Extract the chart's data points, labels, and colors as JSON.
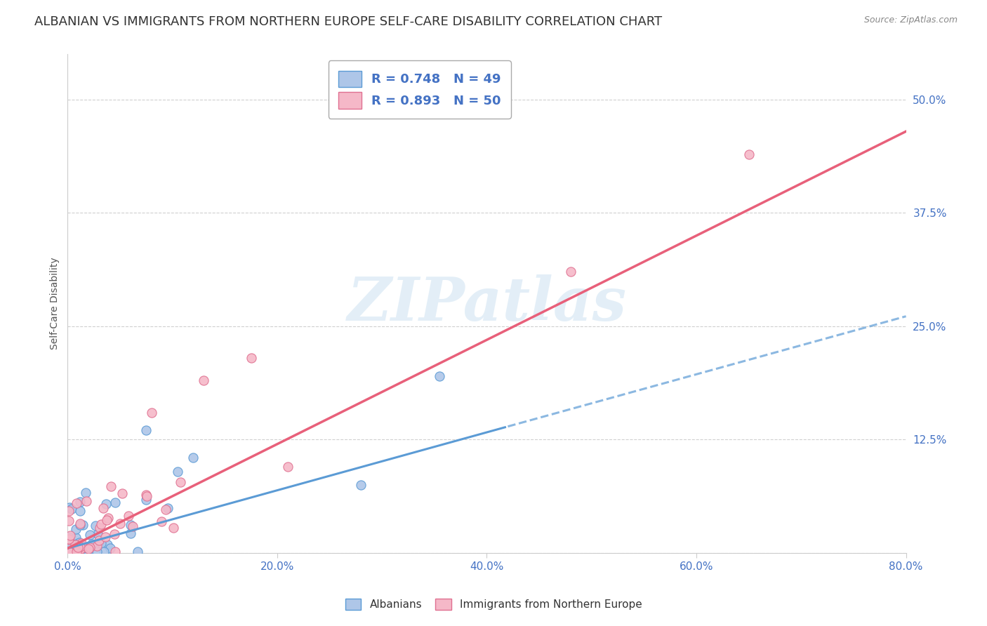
{
  "title": "ALBANIAN VS IMMIGRANTS FROM NORTHERN EUROPE SELF-CARE DISABILITY CORRELATION CHART",
  "source": "Source: ZipAtlas.com",
  "ylabel": "Self-Care Disability",
  "xlim": [
    0.0,
    0.8
  ],
  "ylim": [
    0.0,
    0.55
  ],
  "xtick_vals": [
    0.0,
    0.2,
    0.4,
    0.6,
    0.8
  ],
  "xtick_labels": [
    "0.0%",
    "20.0%",
    "40.0%",
    "60.0%",
    "80.0%"
  ],
  "ytick_vals": [
    0.0,
    0.125,
    0.25,
    0.375,
    0.5
  ],
  "ytick_labels": [
    "",
    "12.5%",
    "25.0%",
    "37.5%",
    "50.0%"
  ],
  "albanians_R": 0.748,
  "albanians_N": 49,
  "northern_europe_R": 0.893,
  "northern_europe_N": 50,
  "color_albanians_fill": "#aec6e8",
  "color_albanians_edge": "#5b9bd5",
  "color_northern_fill": "#f5b8c8",
  "color_northern_edge": "#e07090",
  "color_line_albanians": "#5b9bd5",
  "color_line_northern": "#e8607a",
  "background_color": "#ffffff",
  "grid_color": "#d0d0d0",
  "title_fontsize": 13,
  "axis_label_fontsize": 10,
  "tick_fontsize": 11,
  "tick_color": "#4472c4",
  "watermark_color": "#c8dff0",
  "watermark_alpha": 0.5,
  "legend_fontsize": 13,
  "legend_text_color": "#4472c4",
  "alb_line_slope": 0.32,
  "alb_line_intercept": 0.005,
  "ne_line_slope": 0.575,
  "ne_line_intercept": 0.005,
  "alb_line_solid_end": 0.42,
  "note_albanians": "Albanians",
  "note_northern": "Immigrants from Northern Europe"
}
